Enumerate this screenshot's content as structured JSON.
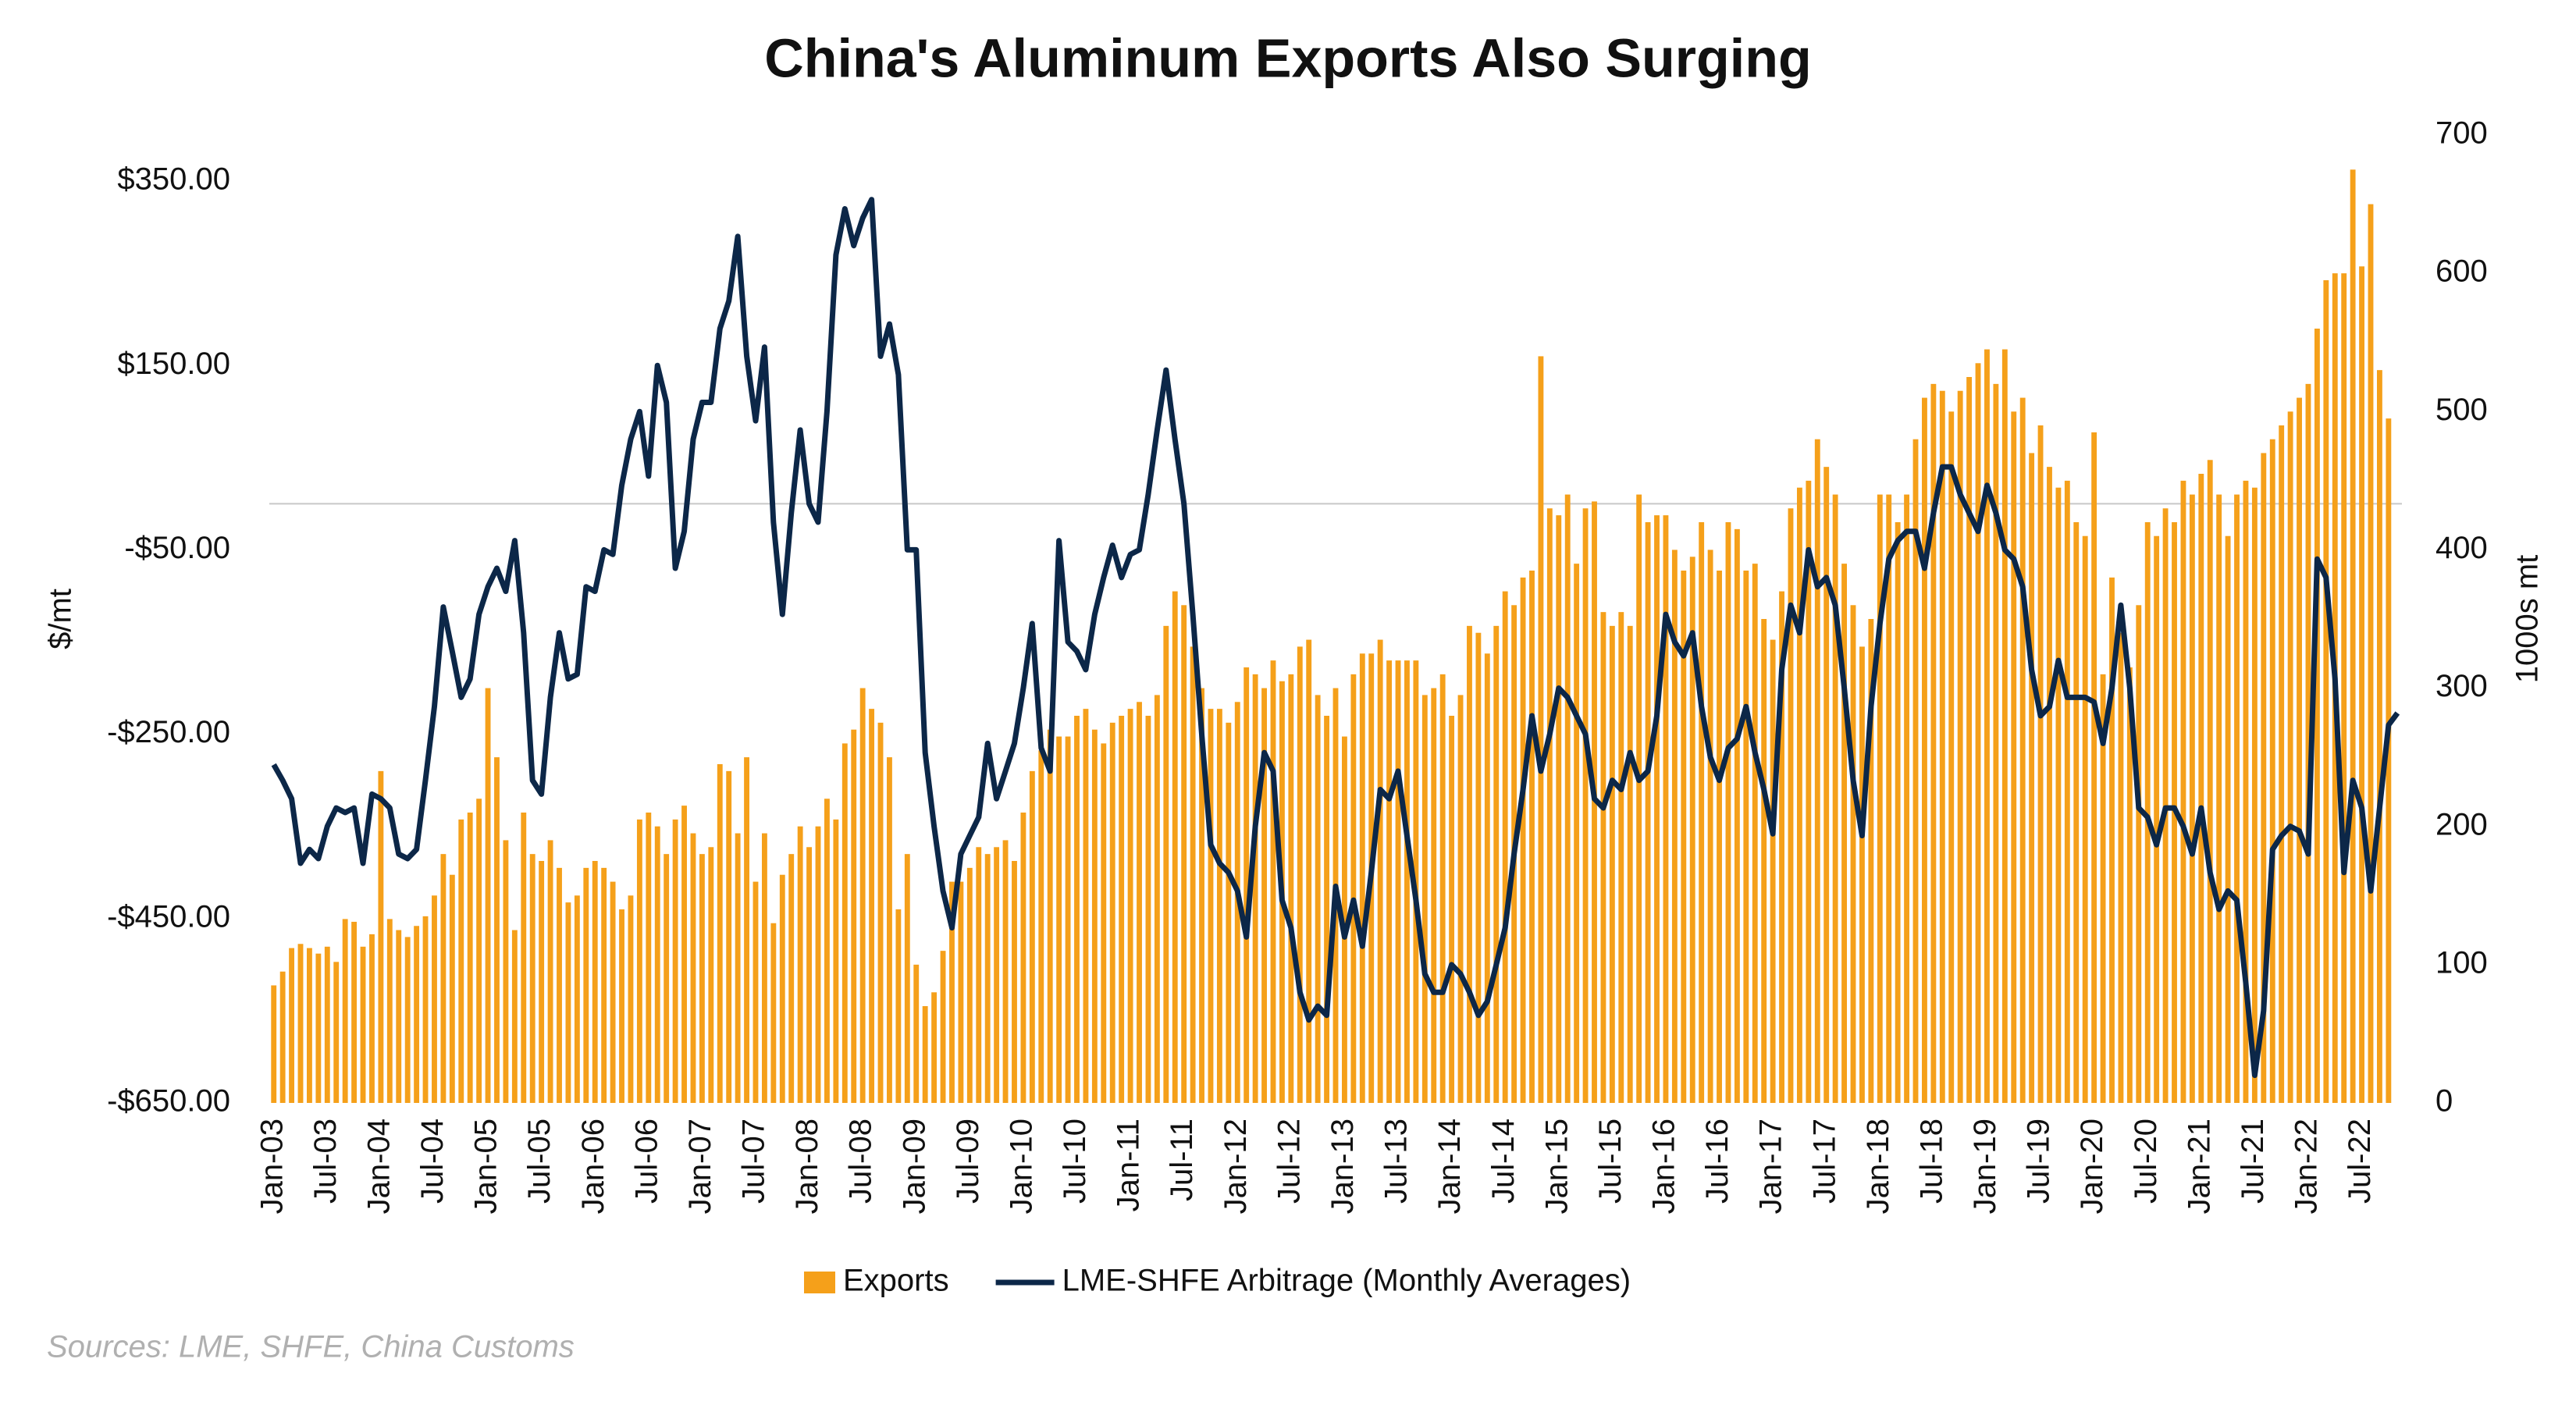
{
  "chart_data": {
    "type": "bar-line",
    "title": "China's Aluminum Exports Also Surging",
    "y_label": "$/mt",
    "y2_label": "1000s mt",
    "source": "Sources: LME, SHFE, China Customs",
    "categories": [
      "Jan-03",
      null,
      null,
      null,
      null,
      null,
      "Jul-03",
      null,
      null,
      null,
      null,
      null,
      "Jan-04",
      null,
      null,
      null,
      null,
      null,
      "Jul-04",
      null,
      null,
      null,
      null,
      null,
      "Jan-05",
      null,
      null,
      null,
      null,
      null,
      "Jul-05",
      null,
      null,
      null,
      null,
      null,
      "Jan-06",
      null,
      null,
      null,
      null,
      null,
      "Jul-06",
      null,
      null,
      null,
      null,
      null,
      "Jan-07",
      null,
      null,
      null,
      null,
      null,
      "Jul-07",
      null,
      null,
      null,
      null,
      null,
      "Jan-08",
      null,
      null,
      null,
      null,
      null,
      "Jul-08",
      null,
      null,
      null,
      null,
      null,
      "Jan-09",
      null,
      null,
      null,
      null,
      null,
      "Jul-09",
      null,
      null,
      null,
      null,
      null,
      "Jan-10",
      null,
      null,
      null,
      null,
      null,
      "Jul-10",
      null,
      null,
      null,
      null,
      null,
      "Jan-11",
      null,
      null,
      null,
      null,
      null,
      "Jul-11",
      null,
      null,
      null,
      null,
      null,
      "Jan-12",
      null,
      null,
      null,
      null,
      null,
      "Jul-12",
      null,
      null,
      null,
      null,
      null,
      "Jan-13",
      null,
      null,
      null,
      null,
      null,
      "Jul-13",
      null,
      null,
      null,
      null,
      null,
      "Jan-14",
      null,
      null,
      null,
      null,
      null,
      "Jul-14",
      null,
      null,
      null,
      null,
      null,
      "Jan-15",
      null,
      null,
      null,
      null,
      null,
      "Jul-15",
      null,
      null,
      null,
      null,
      null,
      "Jan-16",
      null,
      null,
      null,
      null,
      null,
      "Jul-16",
      null,
      null,
      null,
      null,
      null,
      "Jan-17",
      null,
      null,
      null,
      null,
      null,
      "Jul-17",
      null,
      null,
      null,
      null,
      null,
      "Jan-18",
      null,
      null,
      null,
      null,
      null,
      "Jul-18",
      null,
      null,
      null,
      null,
      null,
      "Jan-19",
      null,
      null,
      null,
      null,
      null,
      "Jul-19",
      null,
      null,
      null,
      null,
      null,
      "Jan-20",
      null,
      null,
      null,
      null,
      null,
      "Jul-20",
      null,
      null,
      null,
      null,
      null,
      "Jan-21",
      null,
      null,
      null,
      null,
      null,
      "Jul-21",
      null,
      null,
      null,
      null,
      null,
      "Jan-22",
      null,
      null,
      null,
      null,
      null,
      "Jul-22",
      null,
      null,
      null,
      null
    ],
    "series": [
      {
        "name": "Exports",
        "color": "#f5a01a",
        "axis": "y2",
        "type": "bar",
        "values": [
          85,
          95,
          112,
          115,
          112,
          108,
          113,
          102,
          133,
          131,
          113,
          122,
          240,
          133,
          125,
          120,
          128,
          135,
          150,
          180,
          165,
          205,
          210,
          220,
          300,
          250,
          190,
          125,
          210,
          180,
          175,
          190,
          170,
          145,
          150,
          170,
          175,
          170,
          160,
          140,
          150,
          205,
          210,
          200,
          180,
          205,
          215,
          195,
          180,
          185,
          245,
          240,
          195,
          250,
          160,
          195,
          130,
          165,
          180,
          200,
          185,
          200,
          220,
          205,
          260,
          270,
          300,
          285,
          275,
          250,
          140,
          180,
          100,
          70,
          80,
          110,
          160,
          160,
          170,
          185,
          180,
          185,
          190,
          175,
          210,
          240,
          255,
          270,
          265,
          265,
          280,
          285,
          270,
          260,
          275,
          280,
          285,
          290,
          280,
          295,
          345,
          370,
          360,
          330,
          300,
          285,
          285,
          275,
          290,
          315,
          310,
          300,
          320,
          305,
          310,
          330,
          335,
          295,
          280,
          300,
          265,
          310,
          325,
          325,
          335,
          320,
          320,
          320,
          320,
          295,
          300,
          310,
          280,
          295,
          345,
          340,
          325,
          345,
          370,
          360,
          380,
          385,
          540,
          430,
          425,
          440,
          390,
          430,
          435,
          355,
          345,
          355,
          345,
          440,
          420,
          425,
          425,
          400,
          385,
          395,
          420,
          400,
          385,
          420,
          415,
          385,
          390,
          350,
          335,
          370,
          430,
          445,
          450,
          480,
          460,
          440,
          390,
          360,
          330,
          350,
          440,
          440,
          420,
          440,
          480,
          510,
          520,
          515,
          500,
          515,
          525,
          535,
          545,
          520,
          545,
          500,
          510,
          470,
          490,
          460,
          445,
          450,
          420,
          410,
          485,
          310,
          380,
          340,
          315,
          360,
          420,
          410,
          430,
          420,
          450,
          440,
          455,
          465,
          440,
          410,
          440,
          450,
          445,
          470,
          480,
          490,
          500,
          510,
          520,
          560,
          595,
          600,
          600,
          675,
          605,
          650,
          530,
          495,
          null
        ]
      },
      {
        "name": "LME-SHFE Arbitrage (Monthly Averages)",
        "color": "#0c2748",
        "axis": "y",
        "type": "line",
        "values": [
          -283,
          -300,
          -320,
          -390,
          -375,
          -385,
          -350,
          -330,
          -335,
          -330,
          -390,
          -315,
          -320,
          -330,
          -380,
          -385,
          -375,
          -300,
          -220,
          -112,
          -160,
          -210,
          -190,
          -120,
          -90,
          -70,
          -95,
          -40,
          -140,
          -300,
          -315,
          -210,
          -140,
          -190,
          -185,
          -90,
          -95,
          -50,
          -55,
          20,
          70,
          100,
          30,
          150,
          110,
          -70,
          -30,
          70,
          110,
          110,
          190,
          220,
          290,
          160,
          90,
          170,
          -20,
          -120,
          -10,
          80,
          0,
          -20,
          100,
          270,
          320,
          280,
          310,
          330,
          160,
          195,
          140,
          -50,
          -50,
          -270,
          -350,
          -420,
          -460,
          -380,
          -360,
          -340,
          -260,
          -320,
          -290,
          -260,
          -200,
          -130,
          -265,
          -290,
          -40,
          -150,
          -160,
          -180,
          -120,
          -80,
          -45,
          -80,
          -55,
          -50,
          10,
          80,
          145,
          70,
          0,
          -120,
          -250,
          -370,
          -390,
          -400,
          -420,
          -470,
          -350,
          -270,
          -290,
          -430,
          -460,
          -530,
          -560,
          -545,
          -555,
          -415,
          -470,
          -430,
          -480,
          -400,
          -310,
          -320,
          -290,
          -360,
          -430,
          -510,
          -530,
          -530,
          -500,
          -510,
          -530,
          -555,
          -540,
          -500,
          -460,
          -380,
          -310,
          -230,
          -290,
          -250,
          -200,
          -210,
          -230,
          -250,
          -320,
          -330,
          -300,
          -310,
          -270,
          -300,
          -290,
          -230,
          -120,
          -150,
          -165,
          -140,
          -220,
          -275,
          -300,
          -265,
          -255,
          -220,
          -270,
          -310,
          -358,
          -180,
          -110,
          -140,
          -50,
          -90,
          -80,
          -110,
          -200,
          -300,
          -360,
          -220,
          -130,
          -60,
          -40,
          -30,
          -30,
          -70,
          -10,
          40,
          40,
          10,
          -10,
          -30,
          20,
          -10,
          -50,
          -60,
          -90,
          -180,
          -230,
          -220,
          -170,
          -210,
          -210,
          -210,
          -215,
          -260,
          -200,
          -110,
          -200,
          -330,
          -340,
          -370,
          -330,
          -330,
          -350,
          -380,
          -330,
          -400,
          -440,
          -420,
          -430,
          -520,
          -620,
          -550,
          -375,
          -360,
          -350,
          -355,
          -380,
          -60,
          -80,
          -190,
          -400,
          -300,
          -330,
          -420,
          -330,
          -240,
          -227
        ]
      }
    ],
    "ylim": [
      -650,
      400
    ],
    "yticks": [
      {
        "value": -650,
        "label": "-$650.00"
      },
      {
        "value": -450,
        "label": "-$450.00"
      },
      {
        "value": -250,
        "label": "-$250.00"
      },
      {
        "value": -50,
        "label": "-$50.00"
      },
      {
        "value": 150,
        "label": "$150.00"
      },
      {
        "value": 350,
        "label": "$350.00"
      }
    ],
    "y2lim": [
      0,
      700
    ],
    "y2ticks": [
      0,
      100,
      200,
      300,
      400,
      500,
      600,
      700
    ],
    "legend": "bottom"
  }
}
